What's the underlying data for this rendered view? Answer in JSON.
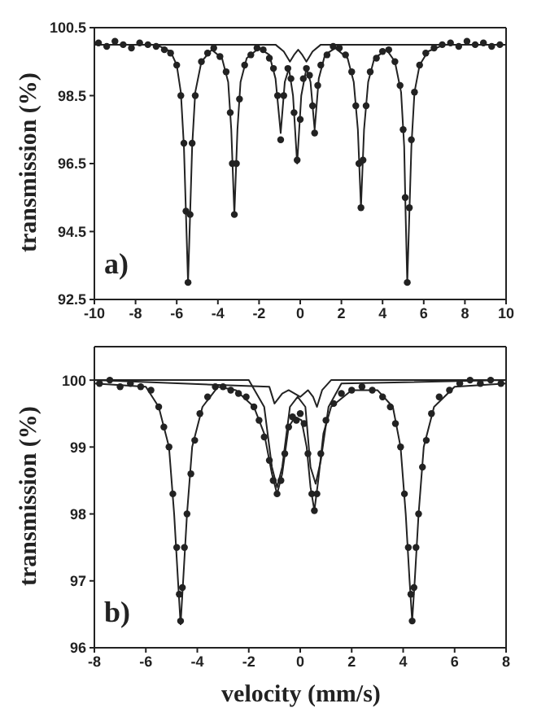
{
  "chart_data": [
    {
      "type": "scatter",
      "ylabel": "transmission (%)",
      "annotations": [
        "a)"
      ],
      "xlim": [
        -10,
        10
      ],
      "xticks": [
        -10,
        -8,
        -6,
        -4,
        -2,
        0,
        2,
        4,
        6,
        8,
        10
      ],
      "ylim": [
        92.5,
        100.5
      ],
      "yticks": [
        92.5,
        94.5,
        96.5,
        98.5,
        100.5
      ],
      "series": [
        {
          "marker": "circle",
          "color": "#222222",
          "x": [
            -9.8,
            -9.4,
            -9.0,
            -8.6,
            -8.2,
            -7.8,
            -7.4,
            -7.0,
            -6.6,
            -6.3,
            -6.0,
            -5.8,
            -5.65,
            -5.55,
            -5.45,
            -5.35,
            -5.25,
            -5.1,
            -4.8,
            -4.5,
            -4.2,
            -3.9,
            -3.6,
            -3.4,
            -3.3,
            -3.2,
            -3.1,
            -2.95,
            -2.7,
            -2.4,
            -2.1,
            -1.8,
            -1.5,
            -1.3,
            -1.1,
            -0.95,
            -0.8,
            -0.6,
            -0.45,
            -0.3,
            -0.15,
            0.0,
            0.15,
            0.3,
            0.45,
            0.6,
            0.7,
            0.85,
            1.0,
            1.3,
            1.6,
            1.9,
            2.2,
            2.5,
            2.7,
            2.85,
            2.95,
            3.05,
            3.2,
            3.4,
            3.7,
            4.0,
            4.3,
            4.6,
            4.85,
            5.0,
            5.1,
            5.2,
            5.3,
            5.4,
            5.55,
            5.8,
            6.1,
            6.5,
            6.9,
            7.3,
            7.7,
            8.1,
            8.5,
            8.9,
            9.3,
            9.7
          ],
          "values": [
            100.05,
            99.95,
            100.1,
            100.0,
            99.9,
            100.05,
            100.0,
            99.95,
            99.85,
            99.75,
            99.4,
            98.5,
            97.1,
            95.1,
            93.0,
            95.0,
            97.1,
            98.5,
            99.5,
            99.75,
            99.9,
            99.65,
            99.2,
            98.0,
            96.5,
            95.0,
            96.5,
            98.4,
            99.4,
            99.7,
            99.9,
            99.85,
            99.6,
            99.3,
            98.5,
            97.2,
            98.5,
            99.3,
            99.0,
            98.0,
            96.6,
            97.8,
            99.0,
            99.3,
            99.1,
            98.2,
            97.4,
            98.8,
            99.4,
            99.7,
            99.95,
            99.9,
            99.7,
            99.2,
            98.2,
            96.5,
            95.2,
            96.6,
            98.2,
            99.2,
            99.6,
            99.8,
            99.85,
            99.5,
            98.8,
            97.5,
            95.5,
            93.0,
            95.2,
            97.2,
            98.6,
            99.4,
            99.75,
            99.9,
            100.0,
            100.05,
            99.95,
            100.1,
            100.0,
            100.05,
            99.95,
            100.0
          ]
        },
        {
          "type": "line",
          "marker": "none",
          "line_style": "solid",
          "color": "#222222",
          "x": [
            -10,
            -7,
            -6.3,
            -6,
            -5.8,
            -5.65,
            -5.55,
            -5.45,
            -5.35,
            -5.25,
            -5.1,
            -4.8,
            -4.3,
            -3.8,
            -3.5,
            -3.35,
            -3.2,
            -3.05,
            -2.9,
            -2.6,
            -2.0,
            -1.5,
            -1.2,
            -0.95,
            -0.75,
            -0.55,
            -0.35,
            -0.15,
            0.05,
            0.3,
            0.5,
            0.7,
            0.9,
            1.2,
            1.7,
            2.3,
            2.6,
            2.8,
            2.95,
            3.1,
            3.3,
            3.6,
            4.2,
            4.6,
            4.9,
            5.05,
            5.12,
            5.2,
            5.3,
            5.4,
            5.55,
            5.8,
            6.2,
            7,
            10
          ],
          "values": [
            100.0,
            100.0,
            99.8,
            99.4,
            98.6,
            97.0,
            95.0,
            93.0,
            95.0,
            97.0,
            98.6,
            99.5,
            99.85,
            99.6,
            98.9,
            97.5,
            95.0,
            97.5,
            98.9,
            99.6,
            99.9,
            99.7,
            99.0,
            97.4,
            98.9,
            99.3,
            98.5,
            96.5,
            98.5,
            99.3,
            98.9,
            97.5,
            99.0,
            99.7,
            99.9,
            99.6,
            98.9,
            97.5,
            95.2,
            97.5,
            98.9,
            99.6,
            99.85,
            99.5,
            98.6,
            97.0,
            95.0,
            93.0,
            95.0,
            97.0,
            98.6,
            99.4,
            99.8,
            100.0,
            100.0
          ]
        },
        {
          "type": "line",
          "marker": "none",
          "line_style": "solid",
          "color": "#222222",
          "x": [
            -10,
            -1.2,
            -0.8,
            -0.5,
            -0.3,
            -0.1,
            0.1,
            0.3,
            0.6,
            1.0,
            10
          ],
          "values": [
            100.0,
            100.0,
            99.8,
            99.5,
            99.7,
            99.85,
            99.7,
            99.5,
            99.8,
            100.0,
            100.0
          ]
        }
      ]
    },
    {
      "type": "scatter",
      "xlabel": "velocity (mm/s)",
      "ylabel": "transmission (%)",
      "annotations": [
        "b)"
      ],
      "xlim": [
        -8,
        8
      ],
      "xticks": [
        -8,
        -6,
        -4,
        -2,
        0,
        2,
        4,
        6,
        8
      ],
      "ylim": [
        96,
        100.5
      ],
      "yticks": [
        96,
        97,
        98,
        99,
        100
      ],
      "series": [
        {
          "marker": "circle",
          "color": "#222222",
          "x": [
            -7.8,
            -7.4,
            -7.0,
            -6.6,
            -6.2,
            -5.8,
            -5.5,
            -5.3,
            -5.1,
            -4.95,
            -4.8,
            -4.7,
            -4.65,
            -4.58,
            -4.5,
            -4.4,
            -4.25,
            -4.1,
            -3.9,
            -3.6,
            -3.3,
            -3.0,
            -2.7,
            -2.4,
            -2.1,
            -1.8,
            -1.6,
            -1.4,
            -1.2,
            -1.05,
            -0.9,
            -0.75,
            -0.6,
            -0.45,
            -0.3,
            -0.15,
            0.0,
            0.15,
            0.3,
            0.45,
            0.55,
            0.65,
            0.8,
            1.0,
            1.3,
            1.6,
            2.0,
            2.4,
            2.8,
            3.2,
            3.5,
            3.7,
            3.9,
            4.05,
            4.2,
            4.3,
            4.35,
            4.42,
            4.5,
            4.6,
            4.75,
            4.9,
            5.1,
            5.4,
            5.8,
            6.2,
            6.6,
            7.0,
            7.4,
            7.8
          ],
          "values": [
            99.95,
            100.0,
            99.9,
            99.95,
            99.9,
            99.85,
            99.6,
            99.3,
            99.0,
            98.3,
            97.5,
            96.8,
            96.4,
            96.9,
            97.5,
            98.0,
            98.6,
            99.1,
            99.5,
            99.75,
            99.9,
            99.9,
            99.85,
            99.8,
            99.75,
            99.6,
            99.4,
            99.15,
            98.8,
            98.5,
            98.3,
            98.5,
            98.9,
            99.3,
            99.45,
            99.4,
            99.5,
            99.35,
            98.9,
            98.3,
            98.05,
            98.3,
            98.9,
            99.4,
            99.65,
            99.8,
            99.85,
            99.9,
            99.85,
            99.75,
            99.6,
            99.35,
            99.0,
            98.3,
            97.5,
            96.8,
            96.4,
            96.9,
            97.5,
            98.0,
            98.7,
            99.1,
            99.5,
            99.75,
            99.85,
            99.95,
            100.0,
            99.95,
            100.0,
            99.95
          ]
        },
        {
          "type": "line",
          "marker": "none",
          "line_style": "solid",
          "color": "#222222",
          "x": [
            -8,
            -6,
            -5.5,
            -5.1,
            -4.9,
            -4.75,
            -4.65,
            -4.55,
            -4.4,
            -4.2,
            -3.8,
            -3.2,
            -2.5,
            -1.8,
            -1.4,
            -1.1,
            -0.9,
            -0.7,
            -0.45,
            -0.2,
            0.05,
            0.25,
            0.4,
            0.55,
            0.7,
            0.9,
            1.2,
            2,
            3,
            3.6,
            3.9,
            4.1,
            4.25,
            4.35,
            4.45,
            4.6,
            4.8,
            5.2,
            6,
            8
          ],
          "values": [
            99.95,
            99.9,
            99.6,
            99.0,
            98.0,
            97.0,
            96.35,
            97.0,
            98.0,
            99.0,
            99.6,
            99.9,
            99.85,
            99.6,
            99.2,
            98.6,
            98.3,
            98.6,
            99.3,
            99.45,
            99.4,
            99.0,
            98.4,
            98.05,
            98.5,
            99.2,
            99.6,
            99.85,
            99.85,
            99.6,
            99.0,
            98.0,
            97.0,
            96.4,
            97.0,
            98.0,
            99.0,
            99.6,
            99.9,
            99.95
          ]
        },
        {
          "type": "line",
          "marker": "none",
          "line_style": "solid",
          "color": "#222222",
          "x": [
            -8,
            -2,
            -1.4,
            -1.1,
            -0.9,
            -0.7,
            -0.4,
            -0.1,
            0.2,
            0.4,
            0.6,
            0.8,
            1.1,
            1.6,
            8
          ],
          "values": [
            100.0,
            100.0,
            99.6,
            98.7,
            98.4,
            98.7,
            99.6,
            99.75,
            99.6,
            98.7,
            98.45,
            98.8,
            99.6,
            99.95,
            100.0
          ]
        },
        {
          "type": "line",
          "marker": "none",
          "line_style": "solid",
          "color": "#222222",
          "x": [
            -8,
            -1.2,
            -1.0,
            -0.7,
            -0.45,
            0.0,
            0.3,
            0.5,
            0.65,
            0.85,
            1.2,
            8
          ],
          "values": [
            100.0,
            99.9,
            99.65,
            99.8,
            99.85,
            99.75,
            99.85,
            99.75,
            99.6,
            99.85,
            100.0,
            100.0
          ]
        }
      ]
    }
  ]
}
